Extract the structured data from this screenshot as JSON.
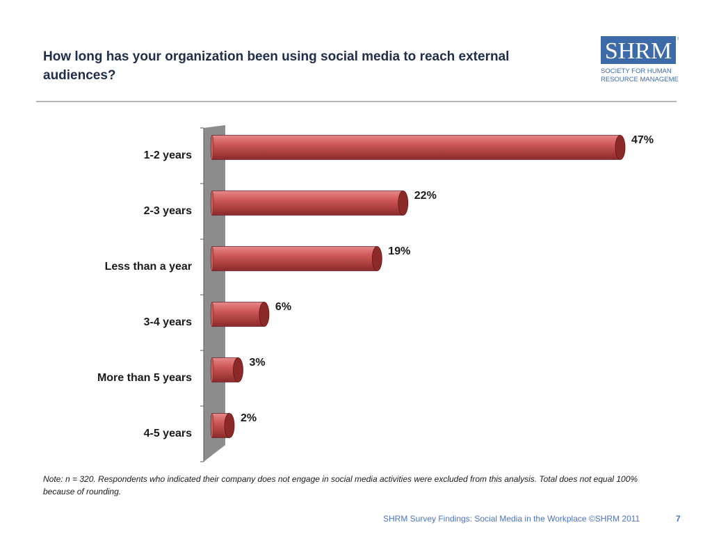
{
  "title": "How long has your organization been using social media to reach external audiences?",
  "logo": {
    "main": "SHRM",
    "line1": "SOCIETY FOR HUMAN",
    "line2": "RESOURCE MANAGEMENT",
    "registered": "®"
  },
  "note": "Note:  n = 320.  Respondents who indicated their company does not engage in social media activities were excluded from this analysis. Total does not equal 100% because of rounding.",
  "footer": "SHRM Survey Findings: Social Media in the Workplace ©SHRM 2011",
  "page_number": "7",
  "colors": {
    "bar": "#d05a5a",
    "bar_dark": "#8c2a2a",
    "bar_highlight": "#e58a8a",
    "wall": "#8c8c8c",
    "title": "#1f2d4a",
    "footer": "#4a74c4"
  },
  "chart_data": {
    "type": "bar",
    "orientation": "horizontal",
    "style": "3d-cylinder",
    "categories": [
      "1-2 years",
      "2-3 years",
      "Less than a year",
      "3-4 years",
      "More than 5 years",
      "4-5 years"
    ],
    "values": [
      47,
      22,
      19,
      6,
      3,
      2
    ],
    "value_labels": [
      "47%",
      "22%",
      "19%",
      "6%",
      "3%",
      "2%"
    ],
    "xlim": [
      0,
      47
    ],
    "grid": false,
    "legend": "none"
  }
}
